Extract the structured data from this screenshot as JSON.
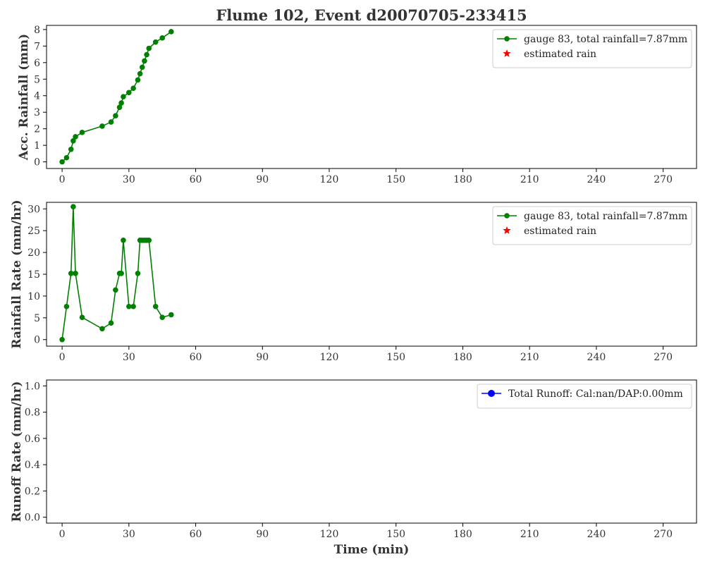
{
  "title": "Flume 102, Event d20070705-233415",
  "colors": {
    "rain": "#008000",
    "estimated": "#ff0000",
    "runoff": "#0000ff",
    "text": "#333333",
    "axis": "#000000"
  },
  "chart_data": [
    {
      "type": "line",
      "ylabel": "Acc. Rainfall (mm)",
      "xlabel": "",
      "xlim": [
        -7,
        285
      ],
      "ylim": [
        -0.4,
        8.25
      ],
      "xticks": [
        0,
        30,
        60,
        90,
        120,
        150,
        180,
        210,
        240,
        270
      ],
      "yticks": [
        0,
        1,
        2,
        3,
        4,
        5,
        6,
        7,
        8
      ],
      "legend_position": "top-right",
      "series": [
        {
          "name": "gauge 83, total rainfall=7.87mm",
          "marker": "circle",
          "x": [
            0,
            2,
            4,
            5,
            6,
            9,
            18,
            22,
            24,
            25.8,
            26.6,
            27.5,
            30,
            32,
            34,
            35,
            36,
            37,
            38,
            39,
            42,
            45,
            49
          ],
          "y": [
            0,
            0.25,
            0.76,
            1.27,
            1.52,
            1.78,
            2.16,
            2.41,
            2.79,
            3.3,
            3.56,
            3.94,
            4.19,
            4.45,
            4.95,
            5.33,
            5.72,
            6.1,
            6.48,
            6.86,
            7.24,
            7.49,
            7.87
          ]
        },
        {
          "name": "estimated rain",
          "marker": "star",
          "x": [],
          "y": []
        }
      ]
    },
    {
      "type": "line",
      "ylabel": "Rainfall Rate (mm/hr)",
      "xlabel": "",
      "xlim": [
        -7,
        285
      ],
      "ylim": [
        -1.5,
        31.5
      ],
      "xticks": [
        0,
        30,
        60,
        90,
        120,
        150,
        180,
        210,
        240,
        270
      ],
      "yticks": [
        0,
        5,
        10,
        15,
        20,
        25,
        30
      ],
      "legend_position": "top-right",
      "series": [
        {
          "name": "gauge 83, total rainfall=7.87mm",
          "marker": "circle",
          "x": [
            0,
            2,
            4,
            5,
            6,
            9,
            18,
            22,
            24,
            25.8,
            26.6,
            27.5,
            30,
            32,
            34,
            35,
            36,
            37,
            38,
            39,
            42,
            45,
            49
          ],
          "y": [
            0,
            7.6,
            15.2,
            30.5,
            15.2,
            5.1,
            2.5,
            3.8,
            11.4,
            15.2,
            15.2,
            22.8,
            7.6,
            7.6,
            15.2,
            22.8,
            22.8,
            22.8,
            22.8,
            22.8,
            7.6,
            5.1,
            5.7
          ]
        },
        {
          "name": "estimated rain",
          "marker": "star",
          "x": [],
          "y": []
        }
      ]
    },
    {
      "type": "line",
      "ylabel": "Runoff Rate (mm/hr)",
      "xlabel": "Time (min)",
      "xlim": [
        -7,
        285
      ],
      "ylim": [
        -0.045,
        1.045
      ],
      "xticks": [
        0,
        30,
        60,
        90,
        120,
        150,
        180,
        210,
        240,
        270
      ],
      "yticks": [
        "0.0",
        "0.2",
        "0.4",
        "0.6",
        "0.8",
        "1.0"
      ],
      "legend_position": "top-right",
      "series": [
        {
          "name": "Total Runoff: Cal:nan/DAP:0.00mm",
          "marker": "circle",
          "x": [],
          "y": []
        }
      ]
    }
  ]
}
